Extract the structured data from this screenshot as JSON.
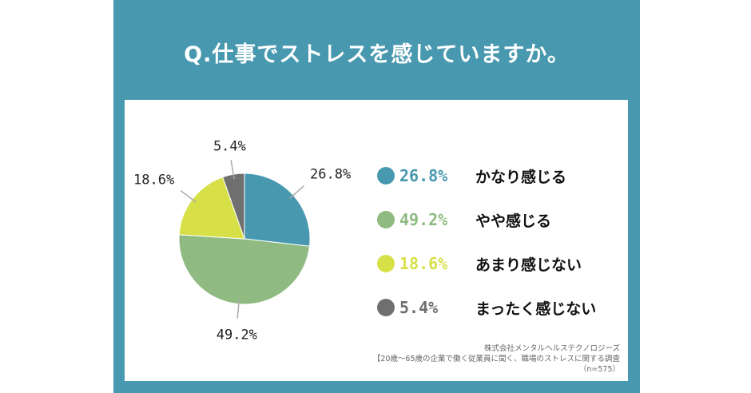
{
  "title": "Q.仕事でストレスを感じていますか。",
  "chart_data": {
    "type": "pie",
    "title": "Q.仕事でストレスを感じていますか。",
    "slices": [
      {
        "label": "かなり感じる",
        "value": 26.8,
        "display": "26.8%",
        "color": "#4899b0"
      },
      {
        "label": "やや感じる",
        "value": 49.2,
        "display": "49.2%",
        "color": "#8fbb82"
      },
      {
        "label": "あまり感じない",
        "value": 18.6,
        "display": "18.6%",
        "color": "#d7e047"
      },
      {
        "label": "まったく感じない",
        "value": 5.4,
        "display": "5.4%",
        "color": "#6f6f6f"
      }
    ],
    "start_angle": "12 o'clock",
    "direction": "clockwise",
    "legend_position": "right"
  },
  "source": {
    "company": "株式会社メンタルヘルステクノロジーズ",
    "survey": "【20歳～65歳の企業で働く従業員に聞く、職場のストレスに関する調査",
    "sample": "（n=575）"
  }
}
